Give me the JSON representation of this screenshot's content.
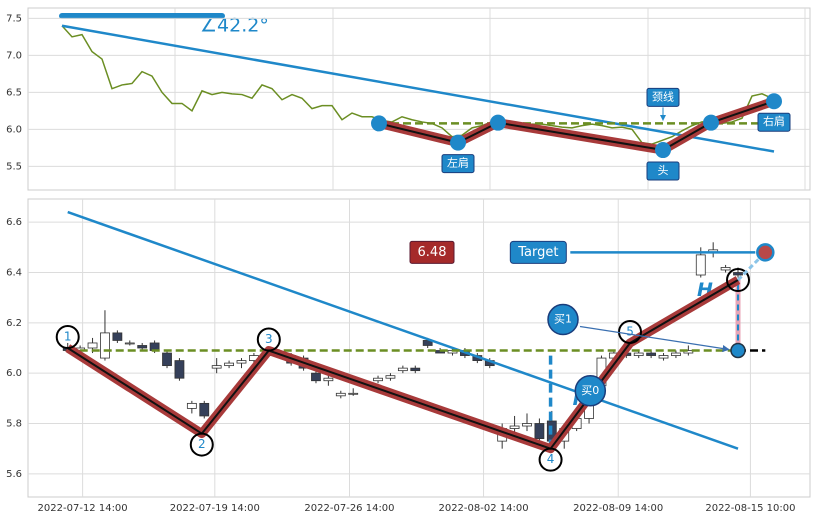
{
  "chart_data": [
    {
      "type": "line",
      "angle_label": "∠42.2°",
      "x": [
        0,
        1,
        2,
        3,
        4,
        5,
        6,
        7,
        8,
        9,
        10,
        11,
        12,
        13,
        14,
        15,
        16,
        17,
        18,
        19,
        20,
        21,
        22,
        23,
        24,
        25,
        26,
        27,
        28,
        29,
        30,
        31,
        32,
        33,
        34,
        35,
        36,
        37,
        38,
        39,
        40,
        41,
        42,
        43,
        44,
        45,
        46,
        47,
        48,
        49,
        50,
        51,
        52,
        53,
        54,
        55,
        56,
        57,
        58,
        59,
        60,
        61,
        62,
        63,
        64,
        65,
        66,
        67,
        68,
        69,
        70,
        71
      ],
      "series": [
        {
          "color": "#6b8e23",
          "values": [
            7.4,
            7.25,
            7.28,
            7.05,
            6.95,
            6.55,
            6.6,
            6.62,
            6.78,
            6.72,
            6.5,
            6.35,
            6.35,
            6.25,
            6.52,
            6.47,
            6.5,
            6.48,
            6.47,
            6.42,
            6.6,
            6.55,
            6.4,
            6.47,
            6.42,
            6.28,
            6.32,
            6.32,
            6.13,
            6.22,
            6.17,
            6.17,
            6.12,
            6.1,
            6.17,
            6.13,
            6.1,
            6.08,
            6.02,
            5.9,
            5.92,
            6.02,
            6.05,
            6.1,
            6.07,
            6.05,
            6.05,
            6.07,
            6.07,
            6.05,
            6.03,
            6.02,
            6.05,
            6.07,
            6.05,
            6.02,
            6.03,
            6.0,
            5.82,
            5.8,
            5.85,
            5.9,
            5.98,
            6.05,
            6.1,
            6.1,
            6.08,
            6.1,
            6.15,
            6.45,
            6.48,
            6.42
          ]
        }
      ],
      "xlim": [
        -3.4,
        74.8
      ],
      "ylim": [
        5.18,
        7.64
      ],
      "yticks": [
        5.5,
        {
          "value": 6,
          "label": "6.0"
        },
        6.5,
        {
          "value": 7,
          "label": "7.0"
        },
        7.5
      ],
      "grid": true,
      "trendline": {
        "color": "#1f88c9",
        "x": [
          0,
          71.2
        ],
        "y": [
          7.4,
          5.7
        ]
      },
      "neckline": {
        "color": "#6b8e23",
        "x": [
          31.7,
          71.2
        ],
        "y": 6.08,
        "label": "颈线"
      },
      "pattern": {
        "x": [
          31.7,
          39.6,
          43.6,
          60.1,
          64.9,
          71.2
        ],
        "y": [
          6.08,
          5.82,
          6.09,
          5.72,
          6.09,
          6.38
        ],
        "labels": [
          null,
          "左肩",
          null,
          "头",
          null,
          "右肩"
        ]
      }
    },
    {
      "type": "candlestick",
      "x": [
        0,
        1,
        2,
        3,
        4,
        5,
        6,
        7,
        8,
        9,
        10,
        11,
        12,
        13,
        14,
        15,
        16,
        17,
        18,
        19,
        20,
        21,
        22,
        23,
        24,
        25,
        26,
        27,
        28,
        29,
        30,
        31,
        32,
        33,
        34,
        35,
        36,
        37,
        38,
        39,
        40,
        41,
        42,
        43,
        44,
        45,
        46,
        47,
        48,
        49,
        50,
        51,
        52,
        53,
        54
      ],
      "open": [
        6.1,
        6.09,
        6.1,
        6.06,
        6.16,
        6.12,
        6.11,
        6.12,
        6.08,
        6.05,
        5.86,
        5.88,
        6.02,
        6.03,
        6.04,
        6.05,
        6.07,
        6.08,
        6.07,
        6.06,
        6.0,
        5.97,
        5.91,
        5.92,
        5.95,
        5.97,
        5.98,
        6.01,
        6.02,
        6.13,
        6.09,
        6.08,
        6.09,
        6.07,
        6.05,
        5.73,
        5.78,
        5.79,
        5.8,
        5.81,
        5.73,
        5.78,
        5.82,
        5.95,
        6.06,
        6.08,
        6.07,
        6.08,
        6.06,
        6.07,
        6.08,
        6.39,
        6.48,
        6.41,
        6.4
      ],
      "high": [
        6.12,
        6.11,
        6.14,
        6.25,
        6.17,
        6.13,
        6.12,
        6.13,
        6.09,
        6.06,
        5.89,
        5.89,
        6.06,
        6.05,
        6.06,
        6.08,
        6.1,
        6.09,
        6.08,
        6.07,
        6.01,
        5.99,
        5.93,
        5.94,
        5.97,
        5.99,
        6.0,
        6.03,
        6.03,
        6.14,
        6.1,
        6.1,
        6.1,
        6.08,
        6.06,
        5.8,
        5.83,
        5.84,
        5.82,
        5.85,
        5.8,
        5.84,
        5.9,
        6.07,
        6.09,
        6.1,
        6.09,
        6.09,
        6.08,
        6.09,
        6.11,
        6.5,
        6.52,
        6.43,
        6.42
      ],
      "low": [
        6.08,
        6.07,
        6.08,
        6.05,
        6.12,
        6.11,
        6.09,
        6.08,
        6.02,
        5.97,
        5.84,
        5.82,
        6.0,
        6.02,
        6.02,
        6.04,
        6.06,
        6.06,
        6.03,
        6.01,
        5.96,
        5.95,
        5.9,
        5.91,
        5.94,
        5.96,
        5.97,
        6.0,
        6.0,
        6.1,
        6.08,
        6.07,
        6.06,
        6.04,
        6.02,
        5.7,
        5.76,
        5.77,
        5.72,
        5.7,
        5.7,
        5.77,
        5.8,
        5.94,
        6.05,
        6.06,
        6.06,
        6.06,
        6.05,
        6.06,
        6.07,
        6.38,
        6.46,
        6.4,
        6.38
      ],
      "close": [
        6.09,
        6.1,
        6.12,
        6.16,
        6.13,
        6.12,
        6.1,
        6.09,
        6.03,
        5.98,
        5.88,
        5.83,
        6.03,
        6.04,
        6.05,
        6.07,
        6.08,
        6.07,
        6.04,
        6.02,
        5.97,
        5.98,
        5.92,
        5.92,
        5.96,
        5.98,
        5.99,
        6.02,
        6.01,
        6.11,
        6.08,
        6.09,
        6.07,
        6.05,
        6.03,
        5.78,
        5.79,
        5.8,
        5.74,
        5.73,
        5.78,
        5.82,
        5.88,
        6.06,
        6.08,
        6.07,
        6.08,
        6.07,
        6.07,
        6.08,
        6.09,
        6.47,
        6.49,
        6.42,
        6.39
      ],
      "up_color": "#ffffff",
      "down_color": "#35405a",
      "xlim": [
        -3.2,
        59.8
      ],
      "ylim": [
        5.508,
        6.692
      ],
      "xticks": [
        {
          "value": 1.2,
          "label": "2022-07-12 14:00"
        },
        {
          "value": 11.85,
          "label": "2022-07-19 14:00"
        },
        {
          "value": 22.7,
          "label": "2022-07-26 14:00"
        },
        {
          "value": 33.5,
          "label": "2022-08-02 14:00"
        },
        {
          "value": 44.35,
          "label": "2022-08-09 14:00"
        },
        {
          "value": 55,
          "label": "2022-08-15 10:00"
        }
      ],
      "yticks": [
        5.6,
        5.8,
        {
          "value": 6,
          "label": "6.0"
        },
        6.2,
        6.4,
        6.6
      ],
      "grid": true,
      "trendline": {
        "color": "#1f88c9",
        "x": [
          0,
          54
        ],
        "y": [
          6.64,
          5.7
        ]
      },
      "neckline": {
        "color": "#6b8e23",
        "x": [
          0,
          54
        ],
        "y": 6.09
      },
      "pattern": {
        "x": [
          0,
          10.8,
          16.2,
          38.9,
          45.3,
          54
        ],
        "y": [
          6.1,
          5.76,
          6.09,
          5.7,
          6.12,
          6.37
        ],
        "labels": [
          "1",
          "2",
          "3",
          "4",
          "5",
          null
        ]
      },
      "target": {
        "x": 56.2,
        "value": 6.48,
        "label": "Target"
      },
      "heights": [
        {
          "x": 38.9,
          "from": 5.7,
          "to": 6.09,
          "label": "H"
        },
        {
          "x": 54,
          "from": 6.09,
          "to": 6.37,
          "label": "H"
        }
      ],
      "buy_points": [
        {
          "x": 54,
          "y": 6.09,
          "label": "买1"
        },
        {
          "x": 42.1,
          "y": 5.93,
          "label": "买0"
        }
      ]
    }
  ]
}
